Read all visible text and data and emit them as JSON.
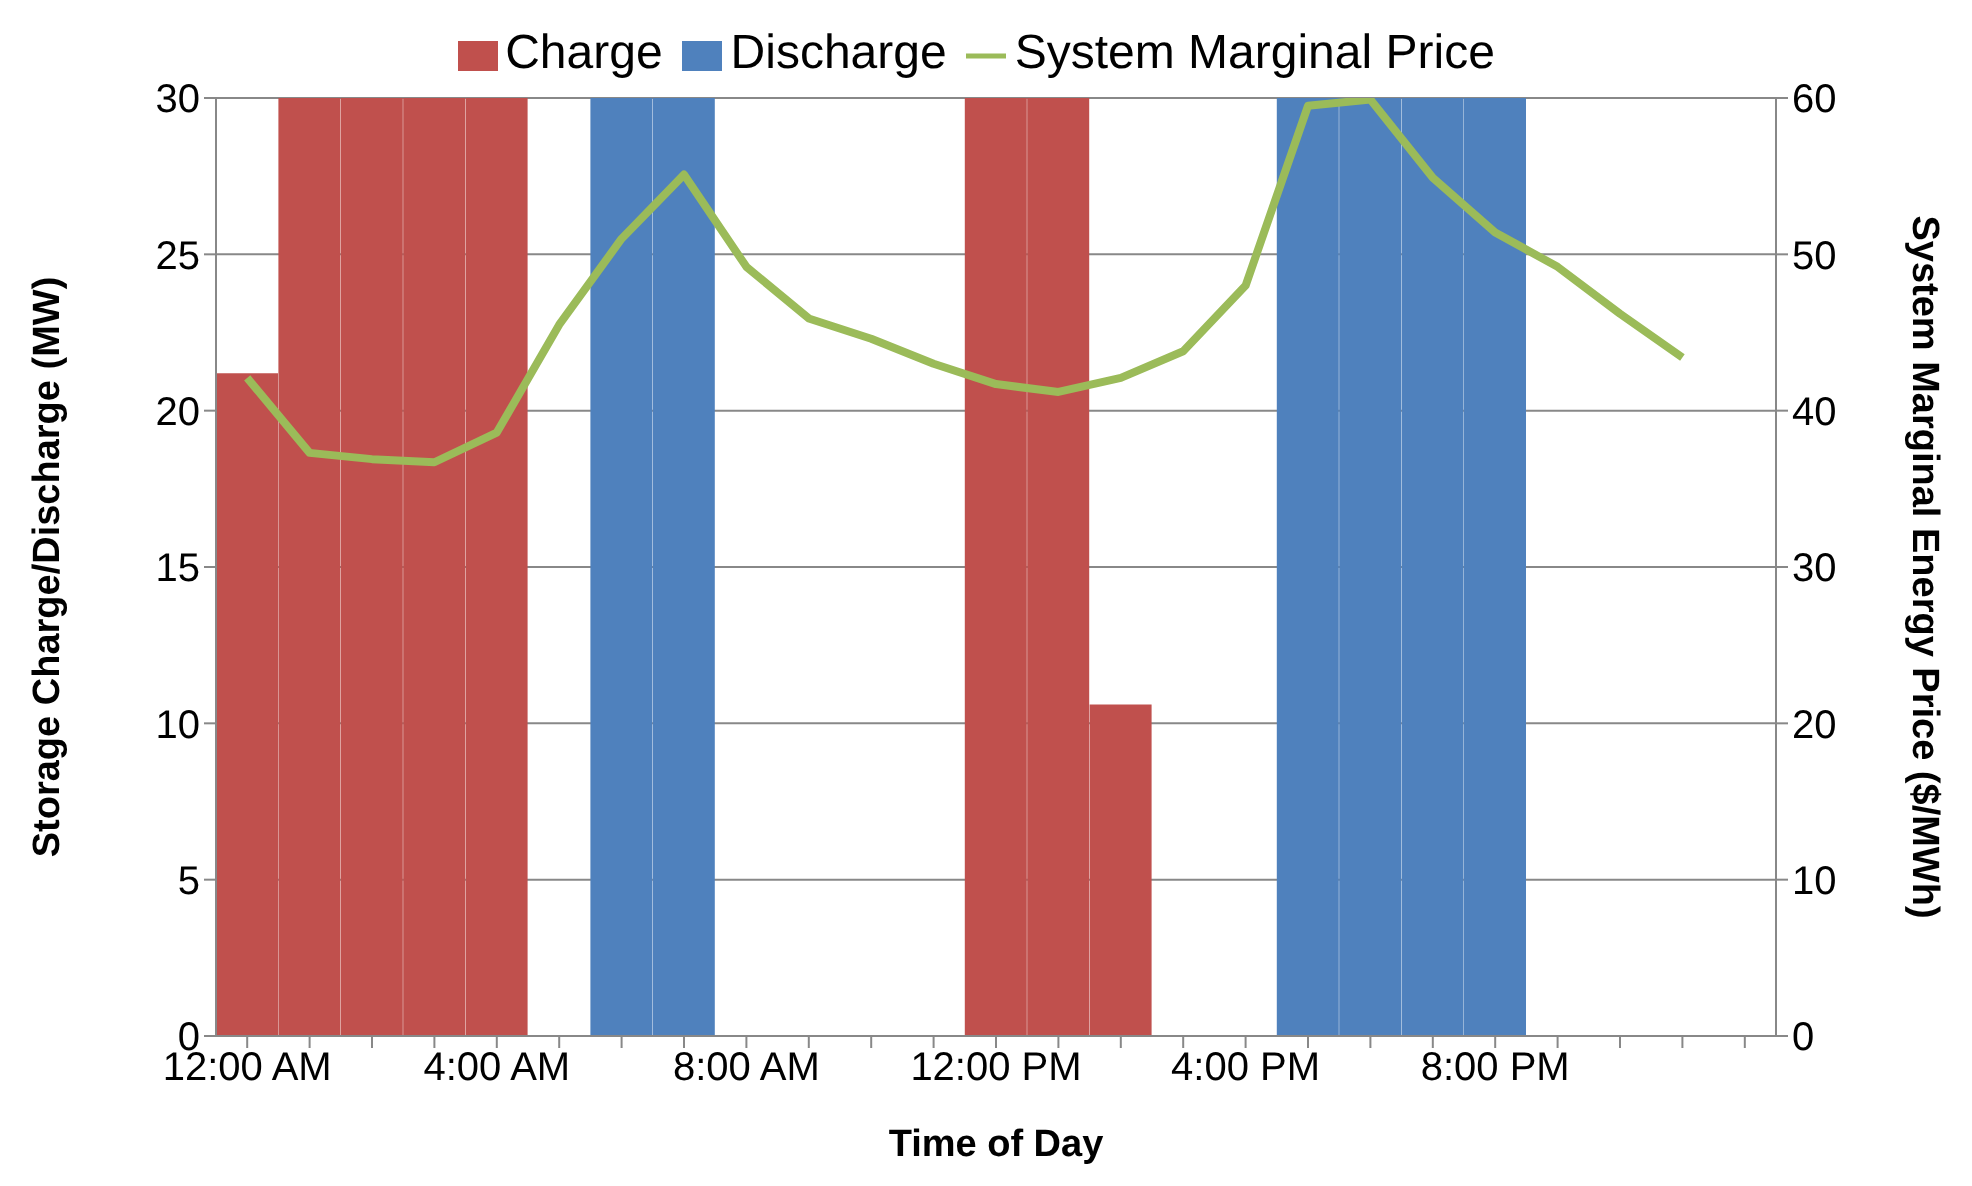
{
  "chart_data": {
    "type": "bar",
    "xlabel": "Time of Day",
    "ylabel": "Storage Charge/Discharge (MW)",
    "y2label": "System Marginal Energy Price ($/MWh)",
    "categories": [
      "12:00 AM",
      null,
      null,
      null,
      "4:00 AM",
      null,
      null,
      null,
      "8:00 AM",
      null,
      null,
      null,
      "12:00 PM",
      null,
      null,
      null,
      "4:00 PM",
      null,
      null,
      null,
      "8:00 PM",
      null,
      null,
      null,
      null
    ],
    "stacked": true,
    "series": [
      {
        "name": "Charge",
        "color": "#c0504d",
        "values": [
          21.2,
          30,
          30,
          30,
          30,
          null,
          null,
          null,
          null,
          null,
          null,
          null,
          30,
          30,
          10.6,
          null,
          null,
          null,
          null,
          null,
          null,
          null,
          null,
          null,
          null
        ]
      },
      {
        "name": "Discharge",
        "color": "#4f81bd",
        "values": [
          null,
          null,
          null,
          null,
          null,
          null,
          30,
          30,
          null,
          null,
          null,
          null,
          null,
          null,
          null,
          null,
          null,
          30,
          30,
          30,
          30,
          null,
          null,
          null,
          null
        ]
      },
      {
        "name": "System Marginal Price",
        "type": "line",
        "axis": "y2",
        "color": "#9bbb59",
        "values": [
          42.1,
          37.3,
          36.9,
          36.7,
          38.6,
          45.5,
          51,
          55.1,
          49.2,
          45.9,
          44.6,
          43,
          41.7,
          41.2,
          42.1,
          43.8,
          48,
          59.5,
          59.9,
          54.9,
          51.4,
          49.2,
          46.2,
          43.4,
          null
        ]
      }
    ],
    "ylim": [
      0,
      30
    ],
    "yticks": [
      0,
      5,
      10,
      15,
      20,
      25,
      30
    ],
    "y2lim": [
      0,
      60
    ],
    "y2ticks": [
      0,
      10,
      20,
      30,
      40,
      50,
      60
    ],
    "grid": "y",
    "legend": "top",
    "marker": "none",
    "line_style": "solid"
  }
}
